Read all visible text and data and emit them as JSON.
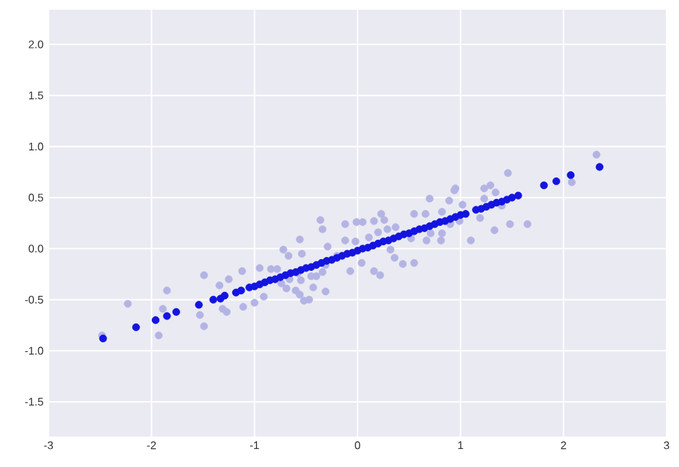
{
  "chart_data": {
    "type": "scatter",
    "xlim": [
      -3,
      3
    ],
    "ylim": [
      -1.84,
      2.34
    ],
    "xticks": [
      -3,
      -2,
      -1,
      0,
      1,
      2,
      3
    ],
    "yticks": [
      -1.5,
      {
        "value": -1,
        "label": "-1.0"
      },
      -0.5,
      {
        "value": 0,
        "label": "0.0"
      },
      0.5,
      {
        "value": 1,
        "label": "1.0"
      },
      1.5,
      {
        "value": 2,
        "label": "2.0"
      }
    ],
    "grid": true,
    "marker": "circle",
    "series": [
      {
        "color": "#b4b4e4",
        "x": [
          -1.49,
          -1.85,
          -2.23,
          -2.48,
          -1.89,
          -1.93,
          -1.53,
          -1.49,
          -1.34,
          -1.25,
          -1.31,
          -1.27,
          -1.12,
          -1.11,
          -1.0,
          -0.36,
          -0.34,
          -0.56,
          -0.12,
          -0.01,
          0.05,
          0.23,
          0.16,
          0.26,
          0.7,
          0.55,
          0.66,
          0.89,
          0.94,
          0.82,
          0.67,
          0.81,
          0.9,
          0.55,
          0.44,
          0.22,
          0.16,
          0.32,
          0.36,
          0.04,
          -0.07,
          -0.12,
          -0.02,
          0.11,
          -0.31,
          -0.43,
          -0.47,
          -0.52,
          -0.56,
          -0.6,
          -0.69,
          -0.91,
          -0.78,
          -0.72,
          -0.67,
          -0.84,
          -0.95,
          -0.54,
          -0.45,
          -0.4,
          -0.58,
          -0.34,
          -0.55,
          -0.66,
          -0.74,
          0.29,
          0.37,
          0.2,
          0.52,
          0.71,
          0.82,
          -0.29,
          -0.31,
          -0.2,
          2.32,
          2.08,
          1.46,
          0.95,
          1.23,
          1.29,
          1.34,
          1.23,
          1.02,
          1.65,
          1.48,
          1.33,
          1.1,
          1.19,
          0.99,
          1.4,
          0.9
        ],
        "values": [
          -0.26,
          -0.41,
          -0.54,
          -0.85,
          -0.59,
          -0.85,
          -0.65,
          -0.76,
          -0.36,
          -0.3,
          -0.59,
          -0.62,
          -0.22,
          -0.57,
          -0.53,
          0.28,
          0.19,
          0.09,
          0.24,
          0.26,
          0.26,
          0.34,
          0.27,
          0.28,
          0.49,
          0.34,
          0.34,
          0.47,
          0.57,
          0.36,
          0.08,
          0.08,
          0.26,
          -0.14,
          -0.15,
          -0.26,
          -0.22,
          -0.01,
          -0.09,
          -0.14,
          -0.22,
          0.08,
          0.07,
          0.11,
          -0.42,
          -0.38,
          -0.5,
          -0.51,
          -0.45,
          -0.41,
          -0.39,
          -0.47,
          -0.2,
          -0.01,
          -0.07,
          -0.2,
          -0.19,
          -0.05,
          -0.27,
          -0.27,
          -0.24,
          -0.23,
          -0.31,
          -0.3,
          -0.34,
          0.19,
          0.21,
          0.16,
          0.1,
          0.15,
          0.15,
          0.02,
          -0.16,
          -0.07,
          0.92,
          0.65,
          0.74,
          0.59,
          0.59,
          0.62,
          0.55,
          0.49,
          0.43,
          0.24,
          0.24,
          0.18,
          0.08,
          0.3,
          0.27,
          0.42,
          0.24
        ]
      },
      {
        "color": "#1414e0",
        "x": [
          -2.47,
          -2.15,
          -1.96,
          -1.85,
          -1.76,
          -1.54,
          -1.4,
          -1.33,
          -1.29,
          -1.18,
          -1.13,
          -1.05,
          -1.0,
          -0.95,
          -0.9,
          -0.85,
          -0.8,
          -0.75,
          -0.7,
          -0.65,
          -0.6,
          -0.55,
          -0.5,
          -0.45,
          -0.4,
          -0.35,
          -0.3,
          -0.25,
          -0.2,
          -0.15,
          -0.1,
          -0.05,
          0.0,
          0.05,
          0.1,
          0.15,
          0.2,
          0.25,
          0.3,
          0.35,
          0.4,
          0.45,
          0.5,
          0.55,
          0.6,
          0.65,
          0.7,
          0.75,
          0.8,
          0.85,
          0.9,
          0.95,
          1.0,
          1.05,
          1.15,
          1.2,
          1.25,
          1.3,
          1.35,
          1.4,
          1.45,
          1.5,
          1.56,
          1.81,
          1.93,
          2.07,
          2.35
        ],
        "values": [
          -0.88,
          -0.77,
          -0.7,
          -0.66,
          -0.62,
          -0.55,
          -0.5,
          -0.49,
          -0.46,
          -0.43,
          -0.41,
          -0.38,
          -0.37,
          -0.35,
          -0.33,
          -0.31,
          -0.3,
          -0.28,
          -0.26,
          -0.24,
          -0.23,
          -0.21,
          -0.19,
          -0.18,
          -0.16,
          -0.14,
          -0.12,
          -0.11,
          -0.09,
          -0.07,
          -0.05,
          -0.04,
          -0.02,
          0.0,
          0.01,
          0.03,
          0.05,
          0.07,
          0.08,
          0.1,
          0.12,
          0.14,
          0.15,
          0.17,
          0.19,
          0.2,
          0.22,
          0.24,
          0.26,
          0.27,
          0.29,
          0.31,
          0.33,
          0.34,
          0.38,
          0.39,
          0.41,
          0.43,
          0.45,
          0.46,
          0.48,
          0.5,
          0.52,
          0.62,
          0.66,
          0.72,
          0.8
        ]
      }
    ]
  }
}
